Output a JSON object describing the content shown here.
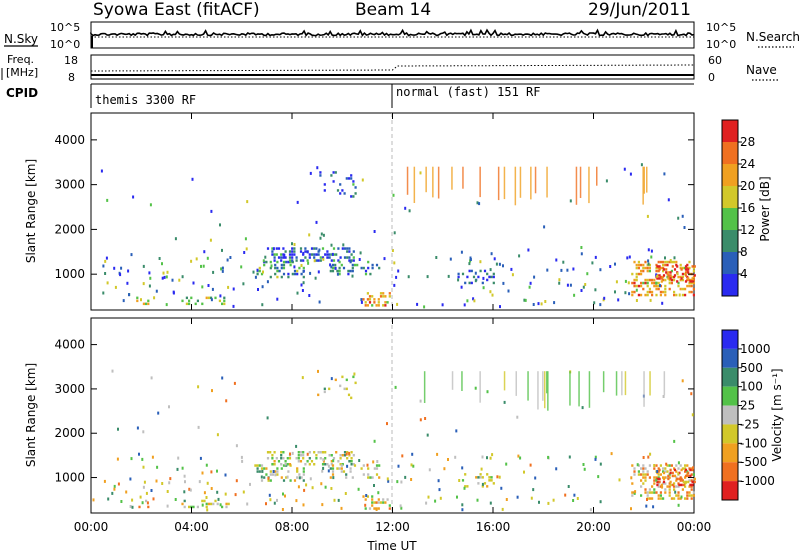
{
  "header": {
    "station": "Syowa East (fitACF)",
    "beam": "Beam 14",
    "date": "29/Jun/2011"
  },
  "noise_panel": {
    "left_label": "N.Sky",
    "left_ticks": [
      "10^5",
      "10^0"
    ],
    "right_ticks": [
      "10^5",
      "10^0"
    ],
    "right_label": "N.Search"
  },
  "freq_panel": {
    "left_label_1": "Freq.",
    "left_label_2": "[MHz]",
    "left_ticks": [
      "18",
      "8"
    ],
    "right_ticks": [
      "60",
      "0"
    ],
    "right_label": "Nave"
  },
  "cpid_panel": {
    "label": "CPID",
    "modes": [
      {
        "name": "themis 3300 RF",
        "start_hour": 0
      },
      {
        "name": "normal (fast) 151 RF",
        "start_hour": 12
      }
    ]
  },
  "chart_data": [
    {
      "type": "heatmap",
      "name": "power",
      "ylabel": "Slant Range [km]",
      "y_ticks": [
        1000,
        2000,
        3000,
        4000
      ],
      "ylim": [
        200,
        4600
      ],
      "xlim": [
        0,
        24
      ],
      "colorbar": {
        "label": "Power [dB]",
        "ticks": [
          "4",
          "8",
          "12",
          "16",
          "20",
          "24",
          "28"
        ],
        "colors": [
          "#2a2af0",
          "#2a5fb8",
          "#3a8c6a",
          "#53c248",
          "#d2c82a",
          "#f0a020",
          "#f07020",
          "#e02020"
        ]
      },
      "clusters": [
        {
          "x": [
            1.8,
            2.3
          ],
          "y": [
            300,
            500
          ],
          "level": 0.55,
          "density": 0.6
        },
        {
          "x": [
            3.6,
            5.5
          ],
          "y": [
            300,
            500
          ],
          "level": 0.45,
          "density": 0.5
        },
        {
          "x": [
            6.5,
            8.5
          ],
          "y": [
            900,
            1300
          ],
          "level": 0.3,
          "density": 0.6
        },
        {
          "x": [
            7.0,
            10.5
          ],
          "y": [
            1300,
            1600
          ],
          "level": 0.2,
          "density": 0.7
        },
        {
          "x": [
            9.5,
            11.5
          ],
          "y": [
            1000,
            1300
          ],
          "level": 0.25,
          "density": 0.55
        },
        {
          "x": [
            10.8,
            11.9
          ],
          "y": [
            300,
            600
          ],
          "level": 0.7,
          "density": 0.6
        },
        {
          "x": [
            9.0,
            10.5
          ],
          "y": [
            2700,
            3300
          ],
          "level": 0.2,
          "density": 0.25
        },
        {
          "x": [
            14.5,
            16.0
          ],
          "y": [
            800,
            1100
          ],
          "level": 0.15,
          "density": 0.4
        },
        {
          "x": [
            21.5,
            24.0
          ],
          "y": [
            500,
            1300
          ],
          "level": 0.7,
          "density": 0.75
        },
        {
          "x": [
            22.5,
            24.0
          ],
          "y": [
            800,
            1200
          ],
          "level": 0.9,
          "density": 0.7
        }
      ]
    },
    {
      "type": "heatmap",
      "name": "velocity",
      "xlabel": "Time UT",
      "x_ticks": [
        "00:00",
        "04:00",
        "08:00",
        "12:00",
        "16:00",
        "20:00",
        "00:00"
      ],
      "ylabel": "Slant Range [km]",
      "y_ticks": [
        1000,
        2000,
        3000,
        4000
      ],
      "ylim": [
        200,
        4600
      ],
      "xlim": [
        0,
        24
      ],
      "colorbar": {
        "label": "Velocity [m s⁻¹]",
        "ticks": [
          "1000",
          "500",
          "100",
          "25",
          "-25",
          "-100",
          "-500",
          "-1000"
        ],
        "colors": [
          "#2a2af0",
          "#2a5fb8",
          "#3a8c6a",
          "#53c248",
          "#bfbfbf",
          "#d2c82a",
          "#f0a020",
          "#f07020",
          "#e02020"
        ]
      },
      "clusters": [
        {
          "x": [
            1.8,
            2.3
          ],
          "y": [
            300,
            500
          ],
          "level": 0.6,
          "density": 0.6
        },
        {
          "x": [
            3.6,
            5.5
          ],
          "y": [
            300,
            500
          ],
          "level": 0.55,
          "density": 0.5
        },
        {
          "x": [
            6.5,
            8.5
          ],
          "y": [
            900,
            1300
          ],
          "level": 0.5,
          "density": 0.6
        },
        {
          "x": [
            7.0,
            10.5
          ],
          "y": [
            1300,
            1600
          ],
          "level": 0.5,
          "density": 0.7
        },
        {
          "x": [
            9.5,
            11.5
          ],
          "y": [
            1000,
            1300
          ],
          "level": 0.55,
          "density": 0.55
        },
        {
          "x": [
            10.8,
            11.9
          ],
          "y": [
            300,
            600
          ],
          "level": 0.6,
          "density": 0.6
        },
        {
          "x": [
            9.0,
            10.5
          ],
          "y": [
            2700,
            3300
          ],
          "level": 0.5,
          "density": 0.25
        },
        {
          "x": [
            14.5,
            16.0
          ],
          "y": [
            800,
            1100
          ],
          "level": 0.5,
          "density": 0.4
        },
        {
          "x": [
            21.5,
            24.0
          ],
          "y": [
            500,
            1300
          ],
          "level": 0.65,
          "density": 0.75
        },
        {
          "x": [
            22.5,
            24.0
          ],
          "y": [
            800,
            1200
          ],
          "level": 0.85,
          "density": 0.7
        }
      ]
    }
  ]
}
